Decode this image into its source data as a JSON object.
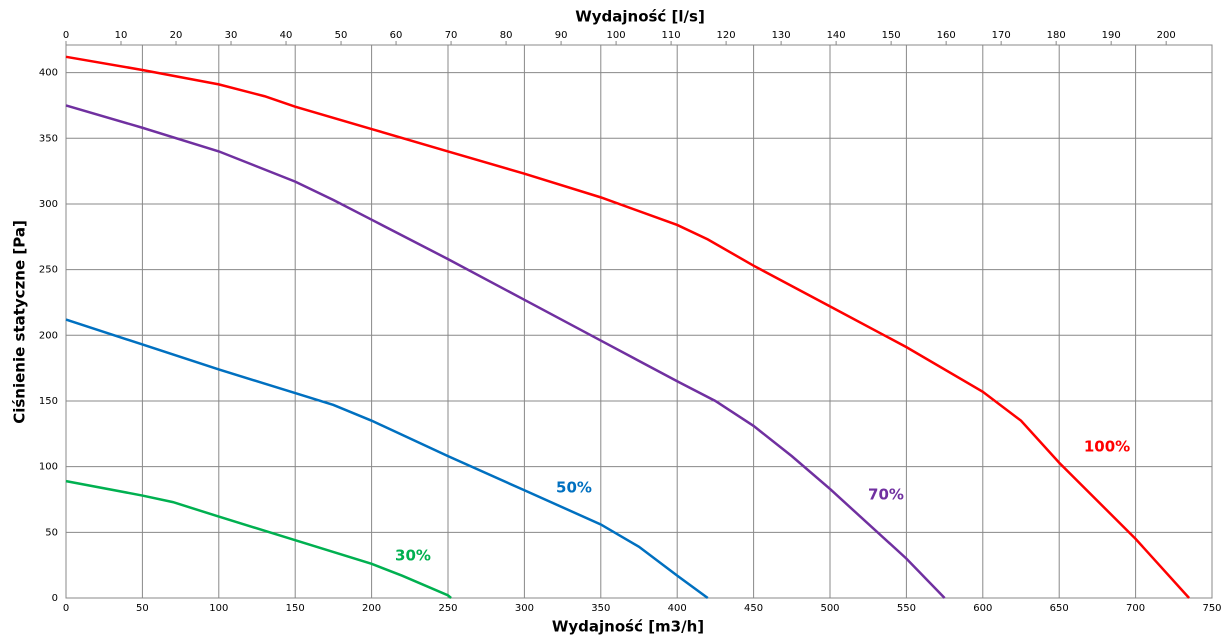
{
  "chart_data": {
    "type": "line",
    "xlabel": "Wydajność [m3/h]",
    "x2label": "Wydajność [l/s]",
    "ylabel": "Ciśnienie statyczne [Pa]",
    "xlim": [
      0,
      750
    ],
    "xticks": [
      0,
      50,
      100,
      150,
      200,
      250,
      300,
      350,
      400,
      450,
      500,
      550,
      600,
      650,
      700,
      750
    ],
    "x2lim": [
      0,
      208.33
    ],
    "x2ticks": [
      0,
      10,
      20,
      30,
      40,
      50,
      60,
      70,
      80,
      90,
      100,
      110,
      120,
      130,
      140,
      150,
      160,
      170,
      180,
      190,
      200
    ],
    "ylim": [
      0,
      421
    ],
    "yticks": [
      0,
      50,
      100,
      150,
      200,
      250,
      300,
      350,
      400
    ],
    "grid": true,
    "series": [
      {
        "name": "100%",
        "color": "#ff0000",
        "x": [
          0,
          50,
          100,
          130,
          150,
          200,
          250,
          300,
          350,
          400,
          420,
          450,
          500,
          550,
          600,
          625,
          650,
          700,
          735
        ],
        "values": [
          412,
          402,
          391,
          382,
          374,
          357,
          340,
          323,
          305,
          284,
          273,
          253,
          222,
          191,
          157,
          135,
          103,
          45,
          0
        ]
      },
      {
        "name": "70%",
        "color": "#7030a0",
        "x": [
          0,
          50,
          100,
          150,
          175,
          200,
          250,
          300,
          350,
          400,
          425,
          450,
          475,
          500,
          550,
          575
        ],
        "values": [
          375,
          358,
          340,
          317,
          303,
          288,
          258,
          227,
          196,
          165,
          150,
          131,
          108,
          83,
          30,
          0
        ]
      },
      {
        "name": "50%",
        "color": "#0070c0",
        "x": [
          0,
          50,
          100,
          150,
          175,
          200,
          250,
          300,
          350,
          375,
          400,
          420
        ],
        "values": [
          212,
          193,
          174,
          156,
          147,
          135,
          108,
          82,
          56,
          39,
          17,
          0
        ]
      },
      {
        "name": "30%",
        "color": "#00b050",
        "x": [
          0,
          50,
          70,
          100,
          150,
          200,
          220,
          250,
          252
        ],
        "values": [
          89,
          78,
          73,
          62,
          44,
          26,
          17,
          2,
          0
        ]
      }
    ]
  }
}
